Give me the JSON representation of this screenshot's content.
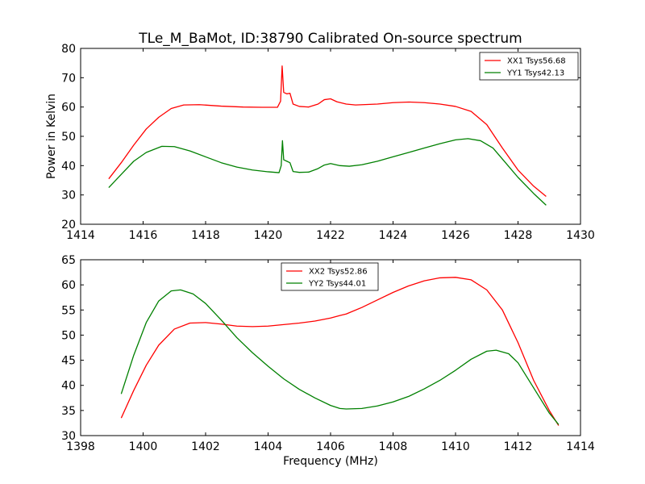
{
  "chart_data": [
    {
      "type": "line",
      "title": "TLe_M_BaMot, ID:38790 Calibrated On-source spectrum",
      "xlabel": "",
      "ylabel": "Power in Kelvin",
      "xlim": [
        1414,
        1430
      ],
      "ylim": [
        20,
        80
      ],
      "xticks": [
        "1414",
        "1416",
        "1418",
        "1420",
        "1422",
        "1424",
        "1426",
        "1428",
        "1430"
      ],
      "yticks": [
        "20",
        "30",
        "40",
        "50",
        "60",
        "70",
        "80"
      ],
      "legend_position": "top-right",
      "series": [
        {
          "name": "XX1 Tsys56.68",
          "color": "#ff0000",
          "points": [
            [
              1414.9,
              35.5
            ],
            [
              1415.3,
              41.0
            ],
            [
              1415.7,
              47.0
            ],
            [
              1416.1,
              52.5
            ],
            [
              1416.5,
              56.5
            ],
            [
              1416.9,
              59.5
            ],
            [
              1417.3,
              60.7
            ],
            [
              1417.8,
              60.8
            ],
            [
              1418.5,
              60.3
            ],
            [
              1419.2,
              60.0
            ],
            [
              1419.8,
              59.9
            ],
            [
              1420.3,
              59.9
            ],
            [
              1420.4,
              62.0
            ],
            [
              1420.45,
              74.0
            ],
            [
              1420.5,
              65.0
            ],
            [
              1420.6,
              64.5
            ],
            [
              1420.7,
              64.7
            ],
            [
              1420.8,
              61.0
            ],
            [
              1421.0,
              60.2
            ],
            [
              1421.3,
              60.0
            ],
            [
              1421.6,
              61.0
            ],
            [
              1421.8,
              62.5
            ],
            [
              1422.0,
              62.8
            ],
            [
              1422.2,
              61.8
            ],
            [
              1422.5,
              61.0
            ],
            [
              1422.8,
              60.7
            ],
            [
              1423.5,
              61.0
            ],
            [
              1424.0,
              61.5
            ],
            [
              1424.5,
              61.7
            ],
            [
              1425.0,
              61.5
            ],
            [
              1425.5,
              61.0
            ],
            [
              1426.0,
              60.2
            ],
            [
              1426.5,
              58.5
            ],
            [
              1427.0,
              54.0
            ],
            [
              1427.5,
              46.0
            ],
            [
              1428.0,
              38.5
            ],
            [
              1428.5,
              33.0
            ],
            [
              1428.9,
              29.5
            ]
          ]
        },
        {
          "name": "YY1 Tsys42.13",
          "color": "#008000",
          "points": [
            [
              1414.9,
              32.5
            ],
            [
              1415.3,
              37.0
            ],
            [
              1415.7,
              41.5
            ],
            [
              1416.1,
              44.5
            ],
            [
              1416.6,
              46.6
            ],
            [
              1417.0,
              46.5
            ],
            [
              1417.5,
              45.0
            ],
            [
              1418.0,
              43.0
            ],
            [
              1418.5,
              41.0
            ],
            [
              1419.0,
              39.5
            ],
            [
              1419.5,
              38.5
            ],
            [
              1420.0,
              37.9
            ],
            [
              1420.35,
              37.6
            ],
            [
              1420.42,
              40.0
            ],
            [
              1420.46,
              48.5
            ],
            [
              1420.5,
              42.0
            ],
            [
              1420.6,
              41.5
            ],
            [
              1420.7,
              41.0
            ],
            [
              1420.8,
              38.0
            ],
            [
              1421.0,
              37.7
            ],
            [
              1421.3,
              37.8
            ],
            [
              1421.6,
              39.0
            ],
            [
              1421.8,
              40.2
            ],
            [
              1422.0,
              40.7
            ],
            [
              1422.3,
              40.0
            ],
            [
              1422.6,
              39.8
            ],
            [
              1423.0,
              40.3
            ],
            [
              1423.5,
              41.5
            ],
            [
              1424.0,
              43.0
            ],
            [
              1424.5,
              44.5
            ],
            [
              1425.0,
              46.0
            ],
            [
              1425.5,
              47.5
            ],
            [
              1426.0,
              48.8
            ],
            [
              1426.4,
              49.2
            ],
            [
              1426.8,
              48.5
            ],
            [
              1427.2,
              46.0
            ],
            [
              1427.6,
              41.0
            ],
            [
              1428.0,
              36.0
            ],
            [
              1428.5,
              30.5
            ],
            [
              1428.9,
              26.5
            ]
          ]
        }
      ]
    },
    {
      "type": "line",
      "title": "",
      "xlabel": "Frequency (MHz)",
      "ylabel": "",
      "xlim": [
        1398,
        1414
      ],
      "ylim": [
        30,
        65
      ],
      "xticks": [
        "1398",
        "1400",
        "1402",
        "1404",
        "1406",
        "1408",
        "1410",
        "1412",
        "1414"
      ],
      "yticks": [
        "30",
        "35",
        "40",
        "45",
        "50",
        "55",
        "60",
        "65"
      ],
      "legend_position": "top-center",
      "series": [
        {
          "name": "XX2 Tsys52.86",
          "color": "#ff0000",
          "points": [
            [
              1399.3,
              33.5
            ],
            [
              1399.7,
              39.0
            ],
            [
              1400.1,
              44.0
            ],
            [
              1400.5,
              48.0
            ],
            [
              1401.0,
              51.2
            ],
            [
              1401.5,
              52.4
            ],
            [
              1402.0,
              52.5
            ],
            [
              1402.5,
              52.2
            ],
            [
              1403.0,
              51.8
            ],
            [
              1403.5,
              51.7
            ],
            [
              1404.0,
              51.8
            ],
            [
              1404.5,
              52.1
            ],
            [
              1405.0,
              52.4
            ],
            [
              1405.5,
              52.8
            ],
            [
              1406.0,
              53.4
            ],
            [
              1406.3,
              53.9
            ],
            [
              1406.5,
              54.2
            ],
            [
              1407.0,
              55.5
            ],
            [
              1407.5,
              57.0
            ],
            [
              1408.0,
              58.5
            ],
            [
              1408.5,
              59.8
            ],
            [
              1409.0,
              60.8
            ],
            [
              1409.5,
              61.4
            ],
            [
              1410.0,
              61.5
            ],
            [
              1410.5,
              61.0
            ],
            [
              1411.0,
              59.0
            ],
            [
              1411.5,
              55.0
            ],
            [
              1412.0,
              48.5
            ],
            [
              1412.5,
              41.0
            ],
            [
              1413.0,
              35.0
            ],
            [
              1413.3,
              32.0
            ]
          ]
        },
        {
          "name": "YY2 Tsys44.01",
          "color": "#008000",
          "points": [
            [
              1399.3,
              38.3
            ],
            [
              1399.7,
              46.0
            ],
            [
              1400.1,
              52.5
            ],
            [
              1400.5,
              56.8
            ],
            [
              1400.9,
              58.8
            ],
            [
              1401.2,
              59.0
            ],
            [
              1401.6,
              58.2
            ],
            [
              1402.0,
              56.3
            ],
            [
              1402.5,
              53.0
            ],
            [
              1403.0,
              49.5
            ],
            [
              1403.5,
              46.5
            ],
            [
              1404.0,
              43.8
            ],
            [
              1404.5,
              41.3
            ],
            [
              1405.0,
              39.2
            ],
            [
              1405.5,
              37.5
            ],
            [
              1406.0,
              36.0
            ],
            [
              1406.3,
              35.4
            ],
            [
              1406.5,
              35.3
            ],
            [
              1407.0,
              35.4
            ],
            [
              1407.5,
              35.9
            ],
            [
              1408.0,
              36.7
            ],
            [
              1408.5,
              37.8
            ],
            [
              1409.0,
              39.3
            ],
            [
              1409.5,
              41.0
            ],
            [
              1410.0,
              43.0
            ],
            [
              1410.5,
              45.2
            ],
            [
              1411.0,
              46.8
            ],
            [
              1411.3,
              47.0
            ],
            [
              1411.7,
              46.3
            ],
            [
              1412.0,
              44.5
            ],
            [
              1412.5,
              39.5
            ],
            [
              1413.0,
              34.5
            ],
            [
              1413.3,
              32.2
            ]
          ]
        }
      ]
    }
  ]
}
